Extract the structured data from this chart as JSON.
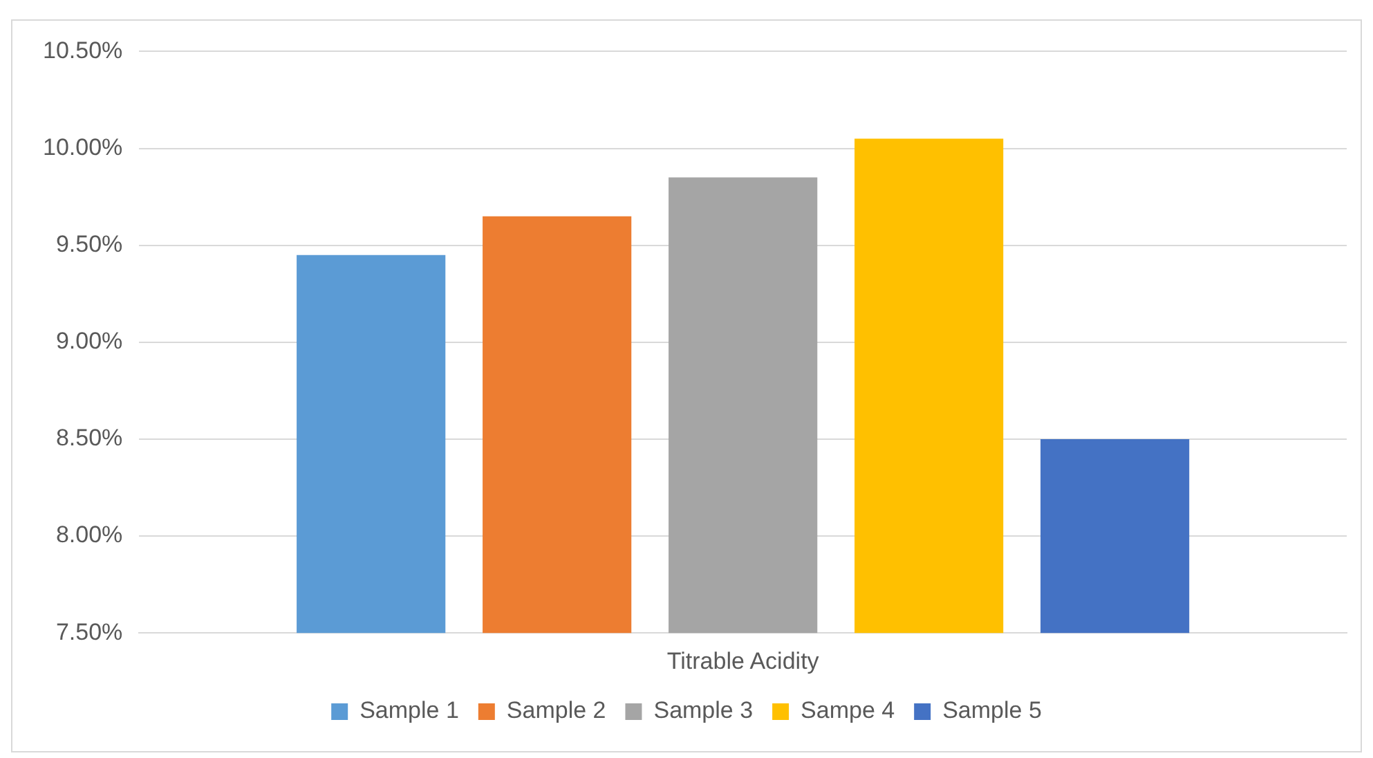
{
  "chart_data": {
    "type": "bar",
    "categories": [
      "Titrable Acidity"
    ],
    "series": [
      {
        "name": "Sample 1",
        "color": "#5b9bd5",
        "values": [
          9.45
        ]
      },
      {
        "name": "Sample 2",
        "color": "#ed7d31",
        "values": [
          9.65
        ]
      },
      {
        "name": "Sample 3",
        "color": "#a5a5a5",
        "values": [
          9.85
        ]
      },
      {
        "name": "Sampe 4",
        "color": "#ffc000",
        "values": [
          10.05
        ]
      },
      {
        "name": "Sample 5",
        "color": "#4472c4",
        "values": [
          8.5
        ]
      }
    ],
    "ylim": [
      7.5,
      10.5
    ],
    "yticks": [
      {
        "value": 7.5,
        "label": "7.50%"
      },
      {
        "value": 8,
        "label": "8.00%"
      },
      {
        "value": 8.5,
        "label": "8.50%"
      },
      {
        "value": 9,
        "label": "9.00%"
      },
      {
        "value": 9.5,
        "label": "9.50%"
      },
      {
        "value": 10,
        "label": "10.00%"
      },
      {
        "value": 10.5,
        "label": "10.50%"
      }
    ],
    "grid": "y",
    "legend": "bottom"
  }
}
